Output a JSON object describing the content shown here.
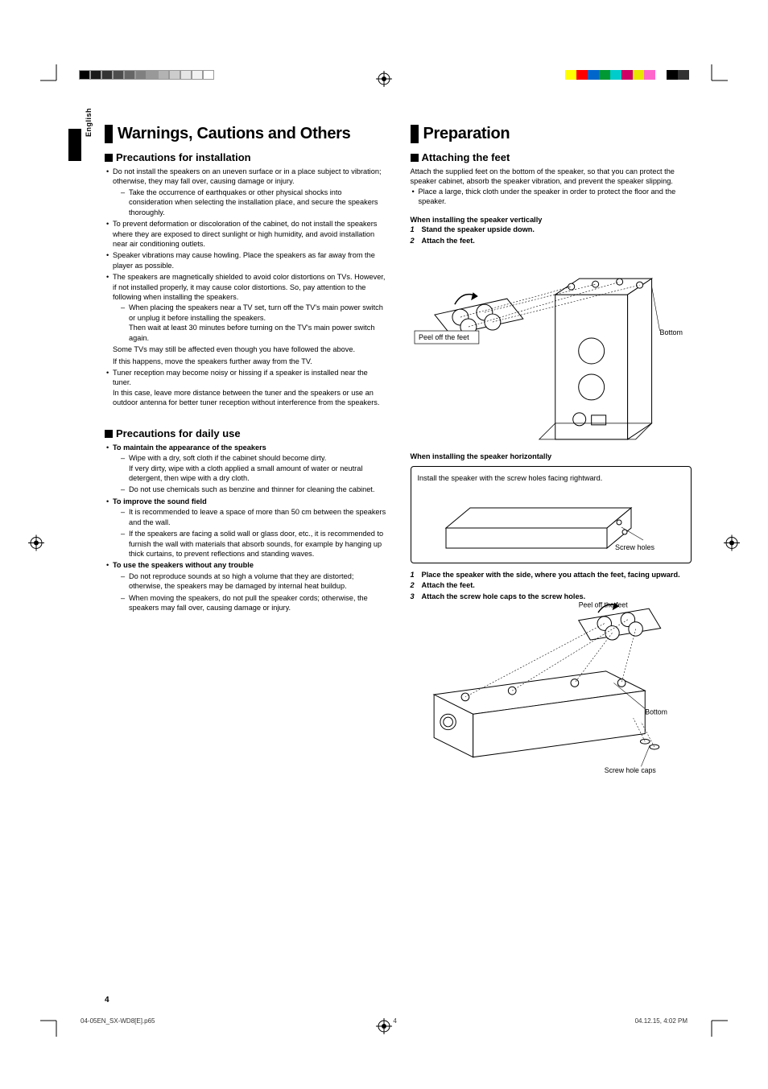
{
  "lang_label": "English",
  "page_number": "4",
  "footer": {
    "file": "04-05EN_SX-WD8[E].p65",
    "page": "4",
    "date": "04.12.15, 4:02 PM"
  },
  "color_bars": {
    "left": [
      "#000000",
      "#1a1a1a",
      "#333333",
      "#4d4d4d",
      "#666666",
      "#808080",
      "#999999",
      "#b3b3b3",
      "#cccccc",
      "#e6e6e6",
      "#f2f2f2",
      "#ffffff"
    ],
    "right": [
      "#ffff00",
      "#ff0000",
      "#0066cc",
      "#009933",
      "#00cccc",
      "#cc0066",
      "#e6e600",
      "#ff66cc",
      "#ffffff",
      "#000000",
      "#333333"
    ]
  },
  "left_col": {
    "title": "Warnings, Cautions and Others",
    "sec1": {
      "heading": "Precautions for installation",
      "b1": "Do not install the speakers on an uneven surface or in a place subject to vibration; otherwise, they may fall over, causing damage or injury.",
      "b1d1": "Take the occurrence of earthquakes or other physical shocks into consideration when selecting the installation place, and secure the speakers thoroughly.",
      "b2": "To prevent deformation or discoloration of the cabinet, do not install the speakers where they are exposed to direct sunlight or high humidity, and avoid installation near air conditioning outlets.",
      "b3": "Speaker vibrations may cause howling. Place the speakers as far away from the player as possible.",
      "b4": "The speakers are magnetically shielded to avoid color distortions on TVs. However, if not installed properly, it may cause color distortions. So, pay attention to the following when installing the speakers.",
      "b4d1": "When placing the speakers near a TV set, turn off the TV's main power switch or unplug it before installing the speakers.",
      "b4d1b": "Then wait at least 30 minutes before turning on the TV's main power switch again.",
      "b4_after1": "Some TVs may still be affected even though you have followed the above.",
      "b4_after2": "If this happens, move the speakers further away from the TV.",
      "b5": "Tuner reception may become noisy or hissing if a speaker is installed near the tuner.",
      "b5_after": "In this case, leave more distance between the tuner and the speakers or use an outdoor antenna for better tuner reception without interference from the speakers."
    },
    "sec2": {
      "heading": "Precautions for daily use",
      "g1_head": "To maintain the appearance of the speakers",
      "g1d1": "Wipe with a dry, soft cloth if the cabinet should become dirty.",
      "g1d1b": "If very dirty, wipe with a cloth applied a small amount of water or neutral detergent, then wipe with a dry cloth.",
      "g1d2": "Do not use chemicals such as benzine and thinner for cleaning the cabinet.",
      "g2_head": "To improve the sound field",
      "g2d1": "It is recommended to leave a space of more than 50 cm between the speakers and the wall.",
      "g2d2": "If the speakers are facing a solid wall or glass door, etc., it is recommended to furnish the wall with materials that absorb sounds, for example by hanging up thick curtains, to prevent reflections and standing waves.",
      "g3_head": "To use the speakers without any trouble",
      "g3d1": "Do not reproduce sounds at so high a volume that they are distorted; otherwise, the speakers may be damaged by internal heat buildup.",
      "g3d2": "When moving the speakers, do not pull the speaker cords; otherwise, the speakers may fall over, causing damage or injury."
    }
  },
  "right_col": {
    "title": "Preparation",
    "sec1": {
      "heading": "Attaching the feet",
      "intro": "Attach the supplied feet on the bottom of the speaker, so that you can protect the speaker cabinet, absorb the speaker vibration, and prevent the speaker slipping.",
      "b1": "Place a large, thick cloth under the speaker in order to protect the floor and the speaker.",
      "sub_v_head": "When installing the speaker vertically",
      "sv_step1": "Stand the speaker upside down.",
      "sv_step2": "Attach the feet.",
      "label_peel": "Peel off the feet",
      "label_bottom": "Bottom",
      "sub_h_head": "When installing the speaker horizontally",
      "sh_box_text": "Install the speaker with the screw holes facing rightward.",
      "label_screw_holes": "Screw holes",
      "sh_step1": "Place the speaker with the side, where you attach the feet, facing upward.",
      "sh_step2": "Attach the feet.",
      "sh_step3": "Attach the screw hole caps to the screw holes.",
      "label_peel2": "Peel off the feet",
      "label_bottom2": "Bottom",
      "label_caps": "Screw hole caps"
    }
  }
}
